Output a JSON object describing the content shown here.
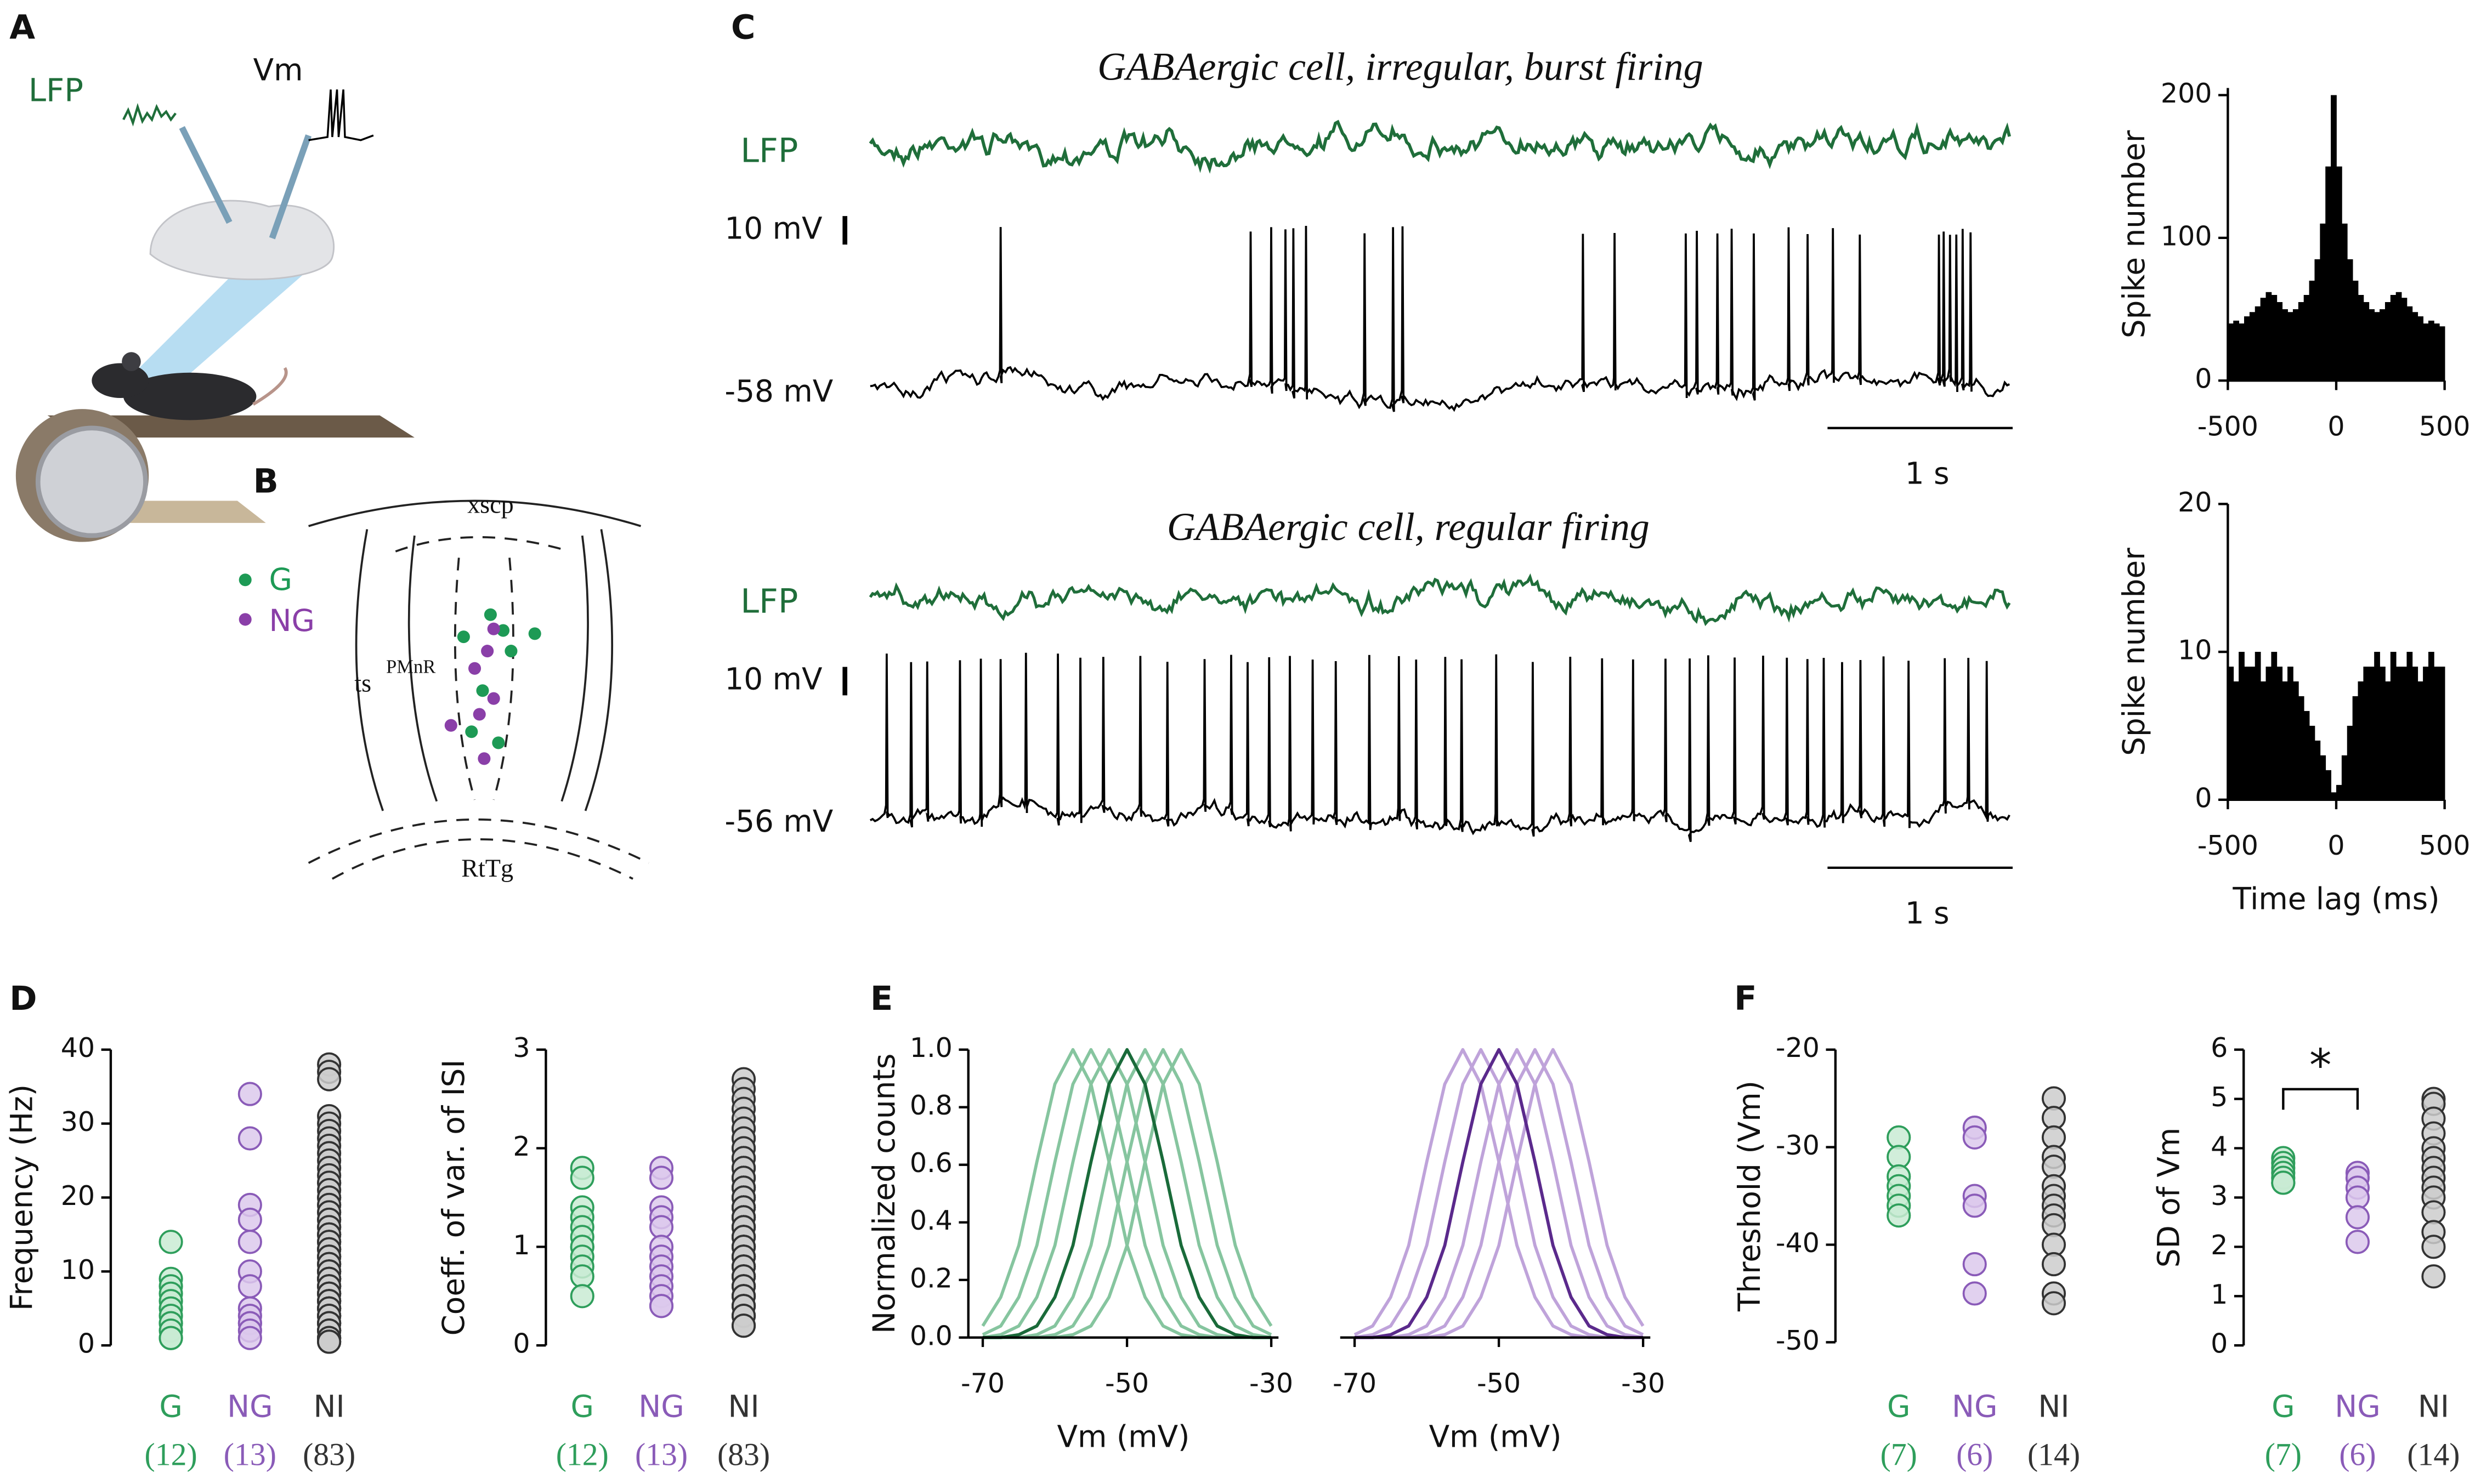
{
  "figure": {
    "panel_labels": [
      "A",
      "B",
      "C",
      "D",
      "E",
      "F"
    ],
    "panel_a": {
      "lfp": "LFP",
      "vm": "Vm"
    },
    "panel_b": {
      "regions": [
        "xscp",
        "ts",
        "PMnR",
        "RtTg"
      ],
      "legend": [
        "G",
        "NG"
      ]
    },
    "panel_c": {
      "traces": [
        {
          "title": "GABAergic cell, irregular, burst firing",
          "lfp": "LFP",
          "scale": "10 mV",
          "baseline": "-58 mV",
          "time_scale": "1 s"
        },
        {
          "title": "GABAergic cell, regular firing",
          "lfp": "LFP",
          "scale": "10 mV",
          "baseline": "-56 mV",
          "time_scale": "1 s"
        }
      ]
    }
  },
  "chart_data": [
    {
      "type": "histogram",
      "ylabel": "Spike number",
      "bins": [
        -500,
        -475,
        -450,
        -425,
        -400,
        -375,
        -350,
        -325,
        -300,
        -275,
        -250,
        -225,
        -200,
        -175,
        -150,
        -125,
        -100,
        -75,
        -50,
        -25,
        0,
        25,
        50,
        75,
        100,
        125,
        150,
        175,
        200,
        225,
        250,
        275,
        300,
        325,
        350,
        375,
        400,
        425,
        450,
        475,
        500
      ],
      "values": [
        40,
        42,
        40,
        45,
        48,
        52,
        58,
        62,
        60,
        55,
        50,
        48,
        50,
        55,
        60,
        70,
        85,
        110,
        150,
        200,
        150,
        110,
        85,
        70,
        60,
        55,
        50,
        48,
        50,
        55,
        60,
        62,
        58,
        52,
        48,
        45,
        40,
        42,
        40,
        38
      ],
      "color": "#000000",
      "xlim": [
        -500,
        500
      ],
      "xticks": [
        -500,
        0,
        500
      ],
      "ylim": [
        0,
        205
      ],
      "yticks": [
        0,
        100,
        200
      ]
    },
    {
      "type": "histogram",
      "ylabel": "Spike number",
      "xlabel": "Time lag (ms)",
      "bins": [
        -500,
        -475,
        -450,
        -425,
        -400,
        -375,
        -350,
        -325,
        -300,
        -275,
        -250,
        -225,
        -200,
        -175,
        -150,
        -125,
        -100,
        -75,
        -50,
        -25,
        0,
        25,
        50,
        75,
        100,
        125,
        150,
        175,
        200,
        225,
        250,
        275,
        300,
        325,
        350,
        375,
        400,
        425,
        450,
        475,
        500
      ],
      "values": [
        9,
        8,
        10,
        9,
        9,
        10,
        8,
        9,
        10,
        9,
        8,
        9,
        8,
        7,
        6,
        5,
        4,
        3,
        2,
        0.5,
        1,
        3,
        5,
        7,
        8,
        9,
        9,
        10,
        9,
        8,
        10,
        9,
        9,
        10,
        9,
        8,
        9,
        10,
        9,
        9
      ],
      "color": "#000000",
      "xlim": [
        -500,
        500
      ],
      "xticks": [
        -500,
        0,
        500
      ],
      "ylim": [
        0,
        20
      ],
      "yticks": [
        0,
        10,
        20
      ]
    },
    {
      "type": "strip",
      "ylabel": "Frequency (Hz)",
      "ylim": [
        0,
        40
      ],
      "yticks": [
        0,
        10,
        20,
        30,
        40
      ],
      "n_labels": [
        "(12)",
        "(13)",
        "(83)"
      ],
      "series": [
        {
          "name": "G",
          "color": "#2e9e5b",
          "fill": "#c9ebd4",
          "values": [
            14,
            9,
            8,
            7,
            6,
            5,
            4,
            3,
            3,
            2,
            1,
            1
          ]
        },
        {
          "name": "NG",
          "color": "#8a5bb8",
          "fill": "#dcc9ec",
          "values": [
            34,
            28,
            19,
            17,
            14,
            10,
            8,
            5,
            4,
            3,
            3,
            2,
            1
          ]
        },
        {
          "name": "NI",
          "color": "#333333",
          "fill": "#cccccc",
          "values": [
            38,
            37,
            36,
            31,
            30,
            29,
            28,
            27,
            26,
            25,
            24,
            23,
            22,
            22,
            21,
            20,
            20,
            19,
            19,
            18,
            18,
            17,
            17,
            16,
            16,
            15,
            15,
            15,
            14,
            14,
            14,
            13,
            13,
            13,
            12,
            12,
            12,
            11,
            11,
            11,
            10,
            10,
            10,
            10,
            9,
            9,
            9,
            9,
            8,
            8,
            8,
            8,
            7,
            7,
            7,
            7,
            6,
            6,
            6,
            6,
            5,
            5,
            5,
            5,
            4,
            4,
            4,
            4,
            3,
            3,
            3,
            3,
            2,
            2,
            2,
            2,
            1,
            1,
            1,
            1,
            0.5,
            0.5,
            0.5
          ]
        }
      ]
    },
    {
      "type": "strip",
      "ylabel": "Coeff. of var. of ISI",
      "ylim": [
        0,
        3
      ],
      "yticks": [
        0,
        1,
        2,
        3
      ],
      "n_labels": [
        "(12)",
        "(13)",
        "(83)"
      ],
      "series": [
        {
          "name": "G",
          "color": "#2e9e5b",
          "fill": "#c9ebd4",
          "values": [
            1.8,
            1.7,
            1.4,
            1.3,
            1.2,
            1.1,
            1.0,
            1.0,
            0.9,
            0.8,
            0.7,
            0.5
          ]
        },
        {
          "name": "NG",
          "color": "#8a5bb8",
          "fill": "#dcc9ec",
          "values": [
            1.8,
            1.7,
            1.4,
            1.3,
            1.2,
            1.0,
            0.9,
            0.8,
            0.7,
            0.6,
            0.5,
            0.4,
            0.4
          ]
        },
        {
          "name": "NI",
          "color": "#333333",
          "fill": "#cccccc",
          "values": [
            2.7,
            2.6,
            2.5,
            2.4,
            2.3,
            2.2,
            2.2,
            2.1,
            2.1,
            2.0,
            2.0,
            1.9,
            1.9,
            1.9,
            1.8,
            1.8,
            1.8,
            1.7,
            1.7,
            1.7,
            1.6,
            1.6,
            1.6,
            1.6,
            1.5,
            1.5,
            1.5,
            1.5,
            1.4,
            1.4,
            1.4,
            1.4,
            1.4,
            1.3,
            1.3,
            1.3,
            1.3,
            1.3,
            1.2,
            1.2,
            1.2,
            1.2,
            1.2,
            1.1,
            1.1,
            1.1,
            1.1,
            1.1,
            1.0,
            1.0,
            1.0,
            1.0,
            1.0,
            0.9,
            0.9,
            0.9,
            0.9,
            0.9,
            0.8,
            0.8,
            0.8,
            0.8,
            0.7,
            0.7,
            0.7,
            0.7,
            0.6,
            0.6,
            0.6,
            0.6,
            0.5,
            0.5,
            0.5,
            0.5,
            0.4,
            0.4,
            0.4,
            0.4,
            0.3,
            0.3,
            0.3,
            0.2,
            0.2
          ]
        }
      ]
    },
    {
      "type": "line",
      "ylabel": "Normalized counts",
      "xlabel": "Vm (mV)",
      "xlim": [
        -72,
        -29
      ],
      "xticks": [
        -70,
        -50,
        -30
      ],
      "ylim": [
        0,
        1
      ],
      "yticks": [
        {
          "value": 0,
          "label": "0.0"
        },
        0.2,
        0.4,
        0.6,
        0.8,
        {
          "value": 1,
          "label": "1.0"
        }
      ],
      "x": [
        -70,
        -67.5,
        -65,
        -62.5,
        -60,
        -57.5,
        -55,
        -52.5,
        -50,
        -47.5,
        -45,
        -42.5,
        -40,
        -37.5,
        -35,
        -32.5,
        -30
      ],
      "series": [
        {
          "color": "#86c59f",
          "values": [
            0.04,
            0.14,
            0.32,
            0.61,
            0.88,
            1,
            0.88,
            0.61,
            0.32,
            0.14,
            0.04,
            0.01,
            0,
            0,
            0,
            0,
            0
          ]
        },
        {
          "color": "#86c59f",
          "values": [
            0.01,
            0.04,
            0.14,
            0.32,
            0.61,
            0.88,
            1,
            0.88,
            0.61,
            0.32,
            0.14,
            0.04,
            0.01,
            0,
            0,
            0,
            0
          ]
        },
        {
          "color": "#86c59f",
          "values": [
            0,
            0.01,
            0.04,
            0.14,
            0.32,
            0.61,
            0.88,
            1,
            0.88,
            0.61,
            0.32,
            0.14,
            0.04,
            0.01,
            0,
            0,
            0
          ]
        },
        {
          "color": "#86c59f",
          "values": [
            0,
            0,
            0,
            0.01,
            0.04,
            0.14,
            0.32,
            0.61,
            0.88,
            1,
            0.88,
            0.61,
            0.32,
            0.14,
            0.04,
            0.01,
            0
          ]
        },
        {
          "color": "#86c59f",
          "values": [
            0,
            0,
            0,
            0,
            0.01,
            0.04,
            0.14,
            0.32,
            0.61,
            0.88,
            1,
            0.88,
            0.61,
            0.32,
            0.14,
            0.04,
            0.01
          ]
        },
        {
          "color": "#86c59f",
          "values": [
            0,
            0,
            0,
            0,
            0,
            0.01,
            0.04,
            0.14,
            0.32,
            0.61,
            0.88,
            1,
            0.88,
            0.61,
            0.32,
            0.14,
            0.04
          ]
        },
        {
          "color": "#1a6b3a",
          "values": [
            0,
            0,
            0.01,
            0.04,
            0.14,
            0.32,
            0.61,
            0.88,
            1,
            0.88,
            0.61,
            0.32,
            0.14,
            0.04,
            0.01,
            0,
            0
          ]
        }
      ]
    },
    {
      "type": "line",
      "xlabel": "Vm (mV)",
      "xlim": [
        -72,
        -29
      ],
      "xticks": [
        -70,
        -50,
        -30
      ],
      "ylim": [
        0,
        1
      ],
      "x": [
        -70,
        -67.5,
        -65,
        -62.5,
        -60,
        -57.5,
        -55,
        -52.5,
        -50,
        -47.5,
        -45,
        -42.5,
        -40,
        -37.5,
        -35,
        -32.5,
        -30
      ],
      "series": [
        {
          "color": "#bfa3da",
          "values": [
            0.01,
            0.04,
            0.14,
            0.32,
            0.61,
            0.88,
            1,
            0.88,
            0.61,
            0.32,
            0.14,
            0.04,
            0.01,
            0,
            0,
            0,
            0
          ]
        },
        {
          "color": "#bfa3da",
          "values": [
            0,
            0.01,
            0.04,
            0.14,
            0.32,
            0.61,
            0.88,
            1,
            0.88,
            0.61,
            0.32,
            0.14,
            0.04,
            0.01,
            0,
            0,
            0
          ]
        },
        {
          "color": "#bfa3da",
          "values": [
            0,
            0,
            0,
            0.01,
            0.04,
            0.14,
            0.32,
            0.61,
            0.88,
            1,
            0.88,
            0.61,
            0.32,
            0.14,
            0.04,
            0.01,
            0
          ]
        },
        {
          "color": "#bfa3da",
          "values": [
            0,
            0,
            0,
            0,
            0.01,
            0.04,
            0.14,
            0.32,
            0.61,
            0.88,
            1,
            0.88,
            0.61,
            0.32,
            0.14,
            0.04,
            0.01
          ]
        },
        {
          "color": "#bfa3da",
          "values": [
            0,
            0,
            0,
            0,
            0,
            0.01,
            0.04,
            0.14,
            0.32,
            0.61,
            0.88,
            1,
            0.88,
            0.61,
            0.32,
            0.14,
            0.04
          ]
        },
        {
          "color": "#5b2a8c",
          "values": [
            0,
            0,
            0.01,
            0.04,
            0.14,
            0.32,
            0.61,
            0.88,
            1,
            0.88,
            0.61,
            0.32,
            0.14,
            0.04,
            0.01,
            0,
            0
          ]
        }
      ]
    },
    {
      "type": "strip",
      "ylabel": "Threshold (Vm)",
      "ylim": [
        -50,
        -20
      ],
      "yticks": [
        -50,
        -40,
        -30,
        -20
      ],
      "n_labels": [
        "(7)",
        "(6)",
        "(14)"
      ],
      "series": [
        {
          "name": "G",
          "color": "#2e9e5b",
          "fill": "#c9ebd4",
          "values": [
            -29,
            -31,
            -33,
            -34,
            -35,
            -36,
            -37
          ]
        },
        {
          "name": "NG",
          "color": "#8a5bb8",
          "fill": "#dcc9ec",
          "values": [
            -28,
            -29,
            -35,
            -36,
            -42,
            -45
          ]
        },
        {
          "name": "NI",
          "color": "#333333",
          "fill": "#cccccc",
          "values": [
            -25,
            -27,
            -29,
            -31,
            -32,
            -34,
            -35,
            -36,
            -37,
            -38,
            -40,
            -42,
            -45,
            -46
          ]
        }
      ]
    },
    {
      "type": "strip",
      "ylabel": "SD of Vm",
      "ylim": [
        0,
        6
      ],
      "yticks": [
        0,
        1,
        2,
        3,
        4,
        5,
        6
      ],
      "n_labels": [
        "(7)",
        "(6)",
        "(14)"
      ],
      "annotation": "*",
      "series": [
        {
          "name": "G",
          "color": "#2e9e5b",
          "fill": "#c9ebd4",
          "values": [
            3.8,
            3.7,
            3.6,
            3.5,
            3.4,
            3.3,
            3.3
          ]
        },
        {
          "name": "NG",
          "color": "#8a5bb8",
          "fill": "#dcc9ec",
          "values": [
            3.5,
            3.4,
            3.2,
            3.0,
            2.6,
            2.1
          ]
        },
        {
          "name": "NI",
          "color": "#333333",
          "fill": "#cccccc",
          "values": [
            5.0,
            4.9,
            4.6,
            4.3,
            4.0,
            3.8,
            3.6,
            3.4,
            3.2,
            3.0,
            2.7,
            2.3,
            2.0,
            1.4
          ]
        }
      ]
    }
  ]
}
